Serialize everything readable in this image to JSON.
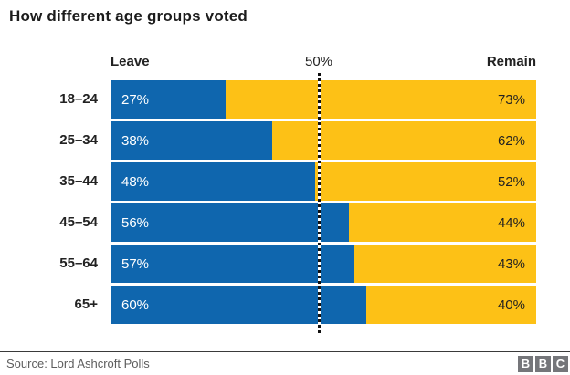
{
  "title": "How different age groups voted",
  "colors": {
    "leave": "#0f66ae",
    "remain": "#fdc116",
    "value_on_leave": "#ffffff",
    "value_on_remain": "#222222",
    "bbc_gray": "#75767a"
  },
  "header": {
    "leave_label": "Leave",
    "mid_label": "50%",
    "remain_label": "Remain"
  },
  "chart_data": {
    "type": "bar",
    "orientation": "horizontal-stacked",
    "title": "How different age groups voted",
    "categories": [
      "18–24",
      "25–34",
      "35–44",
      "45–54",
      "55–64",
      "65+"
    ],
    "series": [
      {
        "name": "Leave",
        "values": [
          27,
          38,
          48,
          56,
          57,
          60
        ]
      },
      {
        "name": "Remain",
        "values": [
          73,
          62,
          52,
          44,
          43,
          40
        ]
      }
    ],
    "value_suffix": "%",
    "xlim": [
      0,
      100
    ],
    "reference_line": {
      "value": 50,
      "label": "50%",
      "style": "dotted"
    },
    "legend_position": "top-as-column-headers",
    "grid": false
  },
  "rows": [
    {
      "label": "18–24",
      "leave_pct": 27,
      "leave_label": "27%",
      "remain_label": "73%"
    },
    {
      "label": "25–34",
      "leave_pct": 38,
      "leave_label": "38%",
      "remain_label": "62%"
    },
    {
      "label": "35–44",
      "leave_pct": 48,
      "leave_label": "48%",
      "remain_label": "52%"
    },
    {
      "label": "45–54",
      "leave_pct": 56,
      "leave_label": "56%",
      "remain_label": "44%"
    },
    {
      "label": "55–64",
      "leave_pct": 57,
      "leave_label": "57%",
      "remain_label": "43%"
    },
    {
      "label": "65+",
      "leave_pct": 60,
      "leave_label": "60%",
      "remain_label": "40%"
    }
  ],
  "footer": {
    "source": "Source: Lord Ashcroft Polls",
    "logo_letters": [
      "B",
      "B",
      "C"
    ]
  }
}
